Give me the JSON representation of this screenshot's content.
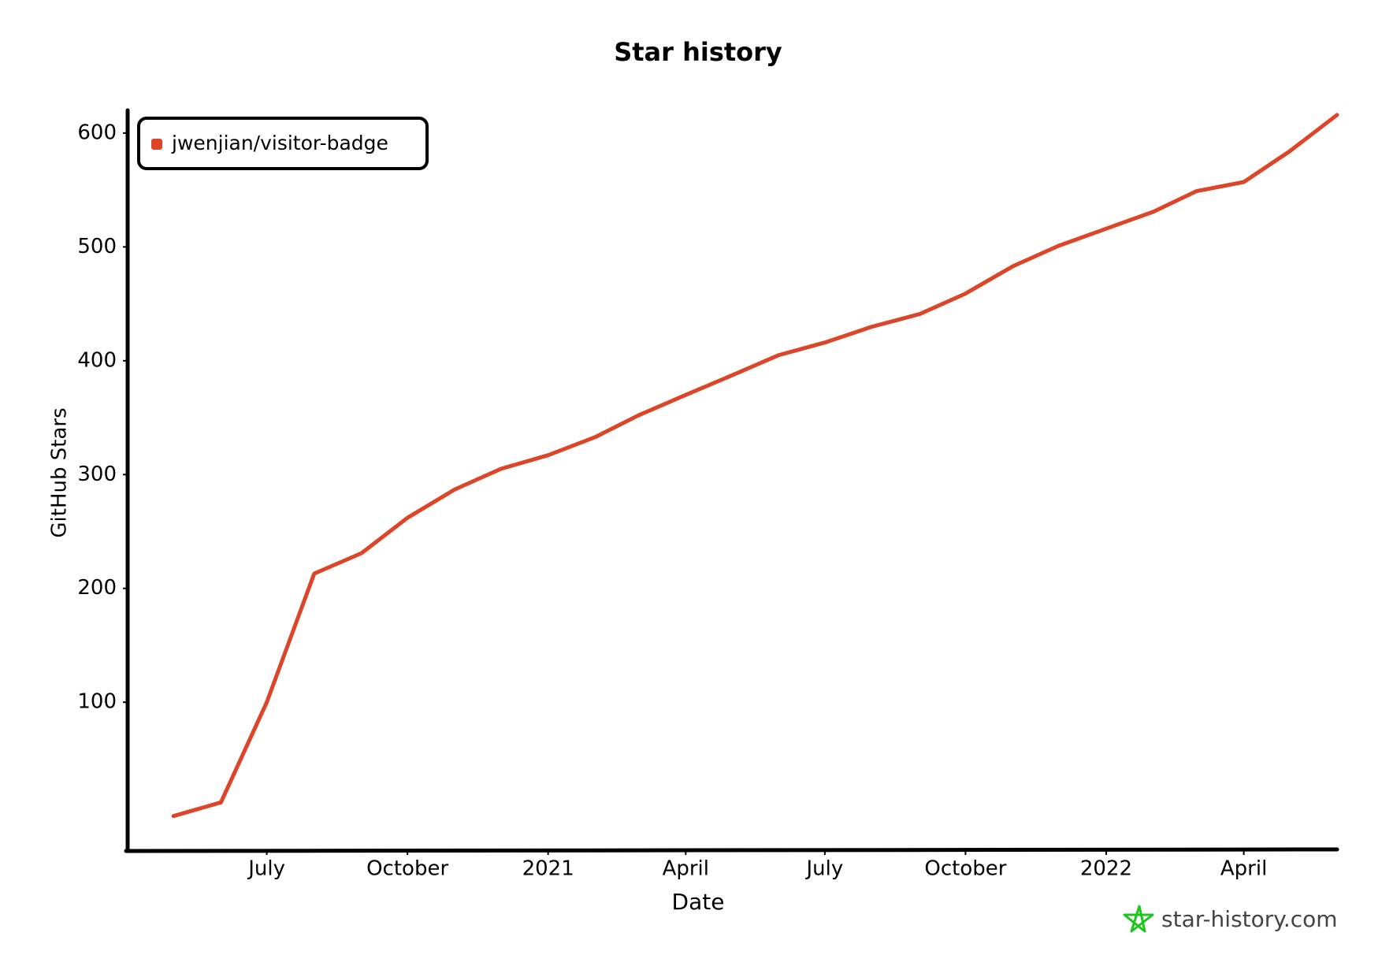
{
  "chart_data": {
    "type": "line",
    "title": "Star history",
    "x_label": "Date",
    "y_label": "GitHub Stars",
    "x": [
      "2020-05",
      "2020-06",
      "2020-07",
      "2020-08",
      "2020-09",
      "2020-10",
      "2020-11",
      "2020-12",
      "2021-01",
      "2021-02",
      "2021-03",
      "2021-04",
      "2021-05",
      "2021-06",
      "2021-07",
      "2021-08",
      "2021-09",
      "2021-10",
      "2021-11",
      "2021-12",
      "2022-01",
      "2022-02",
      "2022-03",
      "2022-04",
      "2022-05",
      "2022-06"
    ],
    "series": [
      {
        "name": "jwenjian/visitor-badge",
        "color": "#dd4528",
        "values": [
          0,
          12,
          100,
          213,
          231,
          262,
          287,
          305,
          317,
          333,
          352,
          370,
          387,
          405,
          416,
          430,
          441,
          459,
          483,
          501,
          516,
          531,
          549,
          557,
          584,
          616
        ]
      }
    ],
    "xlim": [
      "2020-04",
      "2022-06"
    ],
    "xticks": [
      {
        "value": "2020-07",
        "label": "July"
      },
      {
        "value": "2020-10",
        "label": "October"
      },
      {
        "value": "2021-01",
        "label": "2021"
      },
      {
        "value": "2021-04",
        "label": "April"
      },
      {
        "value": "2021-07",
        "label": "July"
      },
      {
        "value": "2021-10",
        "label": "October"
      },
      {
        "value": "2022-01",
        "label": "2022"
      },
      {
        "value": "2022-04",
        "label": "April"
      }
    ],
    "ylim": [
      -30,
      620
    ],
    "yticks": [
      100,
      200,
      300,
      400,
      500,
      600
    ],
    "legend": "upper-left"
  },
  "watermark": "star-history.com"
}
